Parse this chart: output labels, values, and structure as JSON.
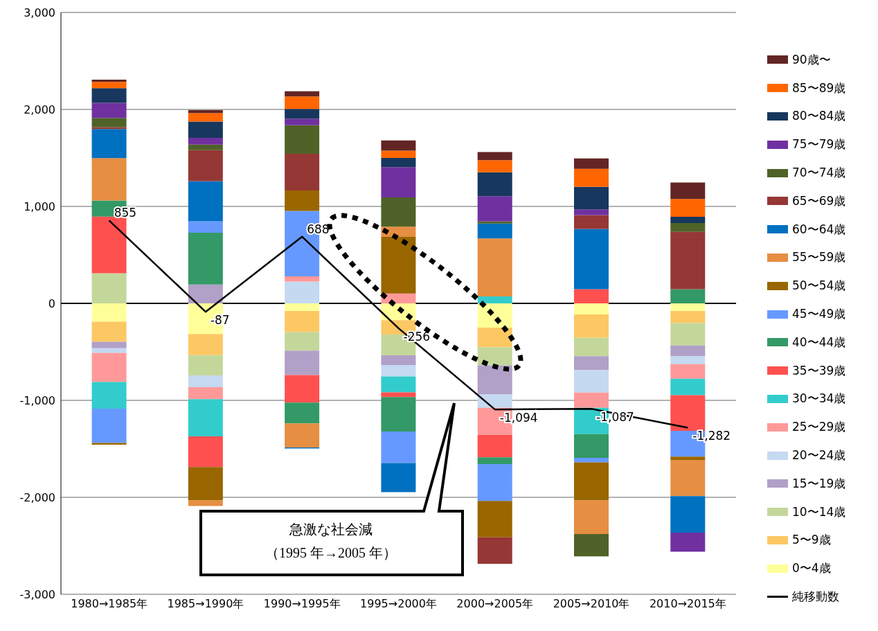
{
  "chart_data": {
    "type": "bar",
    "stacked": true,
    "categories": [
      "1980→1985年",
      "1985→1990年",
      "1990→1995年",
      "1995→2000年",
      "2000→2005年",
      "2005→2010年",
      "2010→2015年"
    ],
    "series": [
      {
        "name": "0〜4歳",
        "color": "#ffff99",
        "values": [
          -190,
          -316,
          -79,
          -174,
          -250,
          -115,
          -79
        ]
      },
      {
        "name": "5〜9歳",
        "color": "#fcc864",
        "values": [
          -206,
          -218,
          -217,
          -147,
          -201,
          -241,
          -125
        ]
      },
      {
        "name": "10〜14歳",
        "color": "#c4d79b",
        "values": [
          310,
          -208,
          -191,
          -215,
          -189,
          -189,
          -230
        ]
      },
      {
        "name": "15〜19歳",
        "color": "#b1a0c7",
        "values": [
          -67,
          194,
          -253,
          -99,
          -295,
          -142,
          -113
        ]
      },
      {
        "name": "20〜24歳",
        "color": "#c5d9f1",
        "values": [
          -47,
          -123,
          225,
          -118,
          -142,
          -232,
          -80
        ]
      },
      {
        "name": "25〜29歳",
        "color": "#ff9999",
        "values": [
          -301,
          -123,
          54,
          101,
          -279,
          -158,
          -149
        ]
      },
      {
        "name": "30〜34歳",
        "color": "#33cccc",
        "values": [
          -274,
          -383,
          null,
          -165,
          71,
          -272,
          -170
        ]
      },
      {
        "name": "35〜39歳",
        "color": "#ff5050",
        "values": [
          585,
          -316,
          -284,
          -48,
          -231,
          147,
          -369
        ]
      },
      {
        "name": "40〜44歳",
        "color": "#339966",
        "values": [
          165,
          535,
          -213,
          -355,
          -71,
          -243,
          147
        ]
      },
      {
        "name": "45〜49歳",
        "color": "#6699ff",
        "values": [
          -355,
          118,
          674,
          -325,
          -379,
          -48,
          -265
        ]
      },
      {
        "name": "50〜54歳",
        "color": "#996600",
        "values": [
          -17,
          -343,
          211,
          584,
          -376,
          -390,
          -35
        ]
      },
      {
        "name": "55〜59歳",
        "color": "#e68e42",
        "values": [
          438,
          -59,
          -248,
          106,
          598,
          -348,
          -372
        ]
      },
      {
        "name": "60〜64歳",
        "color": "#0070c0",
        "values": [
          300,
          414,
          -12,
          -300,
          154,
          621,
          -378
        ]
      },
      {
        "name": "65〜69歳",
        "color": "#953735",
        "values": [
          20,
          319,
          378,
          null,
          -272,
          142,
          591
        ]
      },
      {
        "name": "70〜74歳",
        "color": "#4f6228",
        "values": [
          95,
          57,
          296,
          302,
          23,
          -231,
          90
        ]
      },
      {
        "name": "75〜79歳",
        "color": "#7030a0",
        "values": [
          154,
          71,
          66,
          312,
          260,
          60,
          -196
        ]
      },
      {
        "name": "80〜84歳",
        "color": "#17375e",
        "values": [
          153,
          167,
          102,
          95,
          246,
          231,
          64
        ]
      },
      {
        "name": "85〜89歳",
        "color": "#ff6600",
        "values": [
          64,
          88,
          128,
          75,
          125,
          187,
          184
        ]
      },
      {
        "name": "90歳〜",
        "color": "#632523",
        "values": [
          24,
          30,
          54,
          106,
          83,
          106,
          170
        ]
      },
      {
        "name": "純移動数",
        "type": "line",
        "color": "#000000",
        "values": [
          855,
          -87,
          688,
          -256,
          -1094,
          -1087,
          -1282
        ],
        "value_labels": [
          "855",
          "-87",
          "688",
          "-256",
          "-1,094",
          "-1,087",
          "-1,282"
        ]
      }
    ],
    "ylim": [
      -3000,
      3000
    ],
    "yticks": [
      {
        "value": -3000,
        "label": "-3,000"
      },
      {
        "value": -2000,
        "label": "-2,000"
      },
      {
        "value": -1000,
        "label": "-1,000"
      },
      0,
      {
        "value": 1000,
        "label": "1,000"
      },
      {
        "value": 2000,
        "label": "2,000"
      },
      {
        "value": 3000,
        "label": "3,000"
      }
    ],
    "grid": "y",
    "legend": "right",
    "marker": "none",
    "annotations": [
      "急激な社会減",
      "（1995 年→2005 年）"
    ]
  }
}
